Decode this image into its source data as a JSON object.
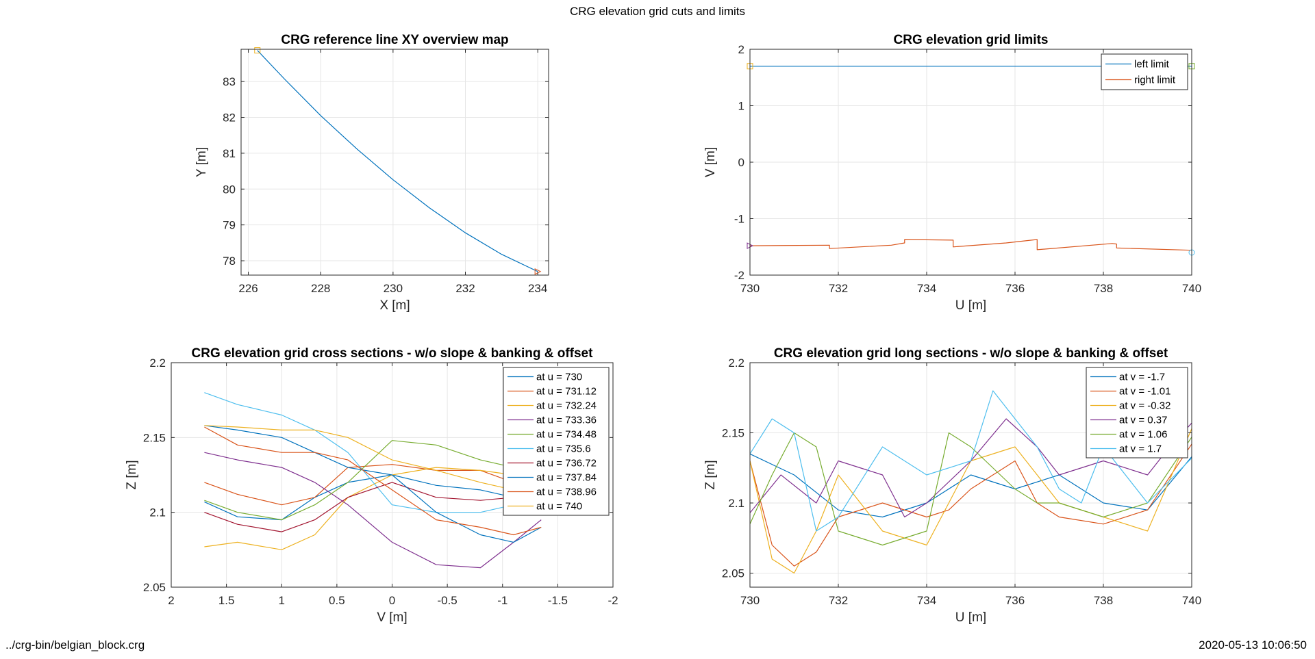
{
  "figure": {
    "suptitle": "CRG elevation grid cuts and limits",
    "footer_left": "../crg-bin/belgian_block.crg",
    "footer_right": "2020-05-13 10:06:50"
  },
  "chart_data": [
    {
      "id": "ax1",
      "type": "line",
      "title": "CRG reference line XY overview map",
      "xlabel": "X [m]",
      "ylabel": "Y [m]",
      "xlim": [
        225.8,
        234.3
      ],
      "ylim": [
        77.6,
        83.9
      ],
      "xticks": [
        226,
        228,
        230,
        232,
        234
      ],
      "yticks": [
        78,
        79,
        80,
        81,
        82,
        83
      ],
      "grid": true,
      "series": [
        {
          "x": [
            226.25,
            227.0,
            228.0,
            229.0,
            230.0,
            231.0,
            232.0,
            233.0,
            234.0
          ],
          "y": [
            83.87,
            83.07,
            82.05,
            81.12,
            80.26,
            79.48,
            78.78,
            78.18,
            77.7
          ],
          "color": "#0072BD"
        }
      ],
      "markers": [
        {
          "x": 226.25,
          "y": 83.87,
          "shape": "square",
          "color": "#EDB120"
        },
        {
          "x": 234.0,
          "y": 77.7,
          "shape": "triangle-right",
          "color": "#D95319"
        }
      ]
    },
    {
      "id": "ax2",
      "type": "line",
      "title": "CRG elevation grid limits",
      "xlabel": "U [m]",
      "ylabel": "V [m]",
      "xlim": [
        730,
        740
      ],
      "ylim": [
        -2,
        2
      ],
      "xticks": [
        730,
        732,
        734,
        736,
        738,
        740
      ],
      "yticks": [
        -2,
        -1,
        0,
        1,
        2
      ],
      "grid": true,
      "legend": "top-right",
      "series": [
        {
          "name": "left limit",
          "color": "#0072BD",
          "x": [
            730,
            740
          ],
          "y": [
            1.7,
            1.7
          ]
        },
        {
          "name": "right limit",
          "color": "#D95319",
          "x": [
            730,
            731.8,
            731.8,
            733.2,
            733.5,
            733.5,
            734.6,
            734.6,
            735.8,
            736.5,
            736.5,
            738.2,
            738.3,
            738.3,
            740
          ],
          "y": [
            -1.48,
            -1.47,
            -1.53,
            -1.47,
            -1.43,
            -1.37,
            -1.38,
            -1.5,
            -1.43,
            -1.37,
            -1.55,
            -1.44,
            -1.45,
            -1.52,
            -1.56
          ]
        }
      ],
      "markers": [
        {
          "x": 730,
          "y": 1.7,
          "shape": "square",
          "color": "#EDB120"
        },
        {
          "x": 740,
          "y": 1.7,
          "shape": "square",
          "color": "#77AC30"
        },
        {
          "x": 730,
          "y": -1.48,
          "shape": "triangle-right",
          "color": "#7E2F8E"
        },
        {
          "x": 740,
          "y": -1.6,
          "shape": "circle",
          "color": "#4DBEEE"
        }
      ]
    },
    {
      "id": "ax3",
      "type": "line",
      "title": "CRG elevation grid cross sections - w/o slope & banking & offset",
      "xlabel": "V [m]",
      "ylabel": "Z [m]",
      "xlim": [
        2,
        -2
      ],
      "ylim": [
        2.05,
        2.2
      ],
      "xticks": [
        2,
        1.5,
        1,
        0.5,
        0,
        -0.5,
        -1,
        -1.5,
        -2
      ],
      "yticks": [
        2.05,
        2.1,
        2.15,
        2.2
      ],
      "grid": true,
      "legend": "top-right",
      "series": [
        {
          "name": "at u = 730",
          "color": "#0072BD",
          "x": [
            1.7,
            1.4,
            1.0,
            0.7,
            0.4,
            0.0,
            -0.4,
            -0.8,
            -1.1,
            -1.35
          ],
          "y": [
            2.107,
            2.097,
            2.095,
            2.11,
            2.12,
            2.125,
            2.118,
            2.115,
            2.11,
            2.107
          ]
        },
        {
          "name": "at u = 731.12",
          "color": "#D95319",
          "x": [
            1.7,
            1.4,
            1.0,
            0.7,
            0.4,
            0.0,
            -0.4,
            -0.8,
            -1.1,
            -1.35
          ],
          "y": [
            2.12,
            2.112,
            2.105,
            2.11,
            2.13,
            2.132,
            2.128,
            2.128,
            2.12,
            2.12
          ]
        },
        {
          "name": "at u = 732.24",
          "color": "#EDB120",
          "x": [
            1.7,
            1.4,
            1.0,
            0.7,
            0.4,
            0.0,
            -0.4,
            -0.8,
            -1.1,
            -1.35
          ],
          "y": [
            2.077,
            2.08,
            2.075,
            2.085,
            2.11,
            2.125,
            2.13,
            2.128,
            2.125,
            2.12
          ]
        },
        {
          "name": "at u = 733.36",
          "color": "#7E2F8E",
          "x": [
            1.7,
            1.4,
            1.0,
            0.7,
            0.4,
            0.0,
            -0.4,
            -0.8,
            -1.1,
            -1.35
          ],
          "y": [
            2.14,
            2.135,
            2.13,
            2.12,
            2.105,
            2.08,
            2.065,
            2.063,
            2.08,
            2.095
          ]
        },
        {
          "name": "at u = 734.48",
          "color": "#77AC30",
          "x": [
            1.7,
            1.4,
            1.0,
            0.7,
            0.4,
            0.0,
            -0.4,
            -0.8,
            -1.1,
            -1.35
          ],
          "y": [
            2.108,
            2.1,
            2.095,
            2.105,
            2.12,
            2.148,
            2.145,
            2.135,
            2.13,
            2.128
          ]
        },
        {
          "name": "at u = 735.6",
          "color": "#4DBEEE",
          "x": [
            1.7,
            1.4,
            1.0,
            0.7,
            0.4,
            0.0,
            -0.4,
            -0.8,
            -1.1,
            -1.35
          ],
          "y": [
            2.18,
            2.172,
            2.165,
            2.155,
            2.14,
            2.105,
            2.1,
            2.1,
            2.105,
            2.11
          ]
        },
        {
          "name": "at u = 736.72",
          "color": "#A2142F",
          "x": [
            1.7,
            1.4,
            1.0,
            0.7,
            0.4,
            0.0,
            -0.4,
            -0.8,
            -1.1,
            -1.35
          ],
          "y": [
            2.1,
            2.092,
            2.087,
            2.095,
            2.11,
            2.12,
            2.11,
            2.108,
            2.11,
            2.105
          ]
        },
        {
          "name": "at u = 737.84",
          "color": "#0072BD",
          "x": [
            1.7,
            1.4,
            1.0,
            0.7,
            0.4,
            0.0,
            -0.4,
            -0.8,
            -1.1,
            -1.35
          ],
          "y": [
            2.158,
            2.155,
            2.15,
            2.14,
            2.13,
            2.125,
            2.1,
            2.085,
            2.08,
            2.09
          ]
        },
        {
          "name": "at u = 738.96",
          "color": "#D95319",
          "x": [
            1.7,
            1.4,
            1.0,
            0.7,
            0.4,
            0.0,
            -0.4,
            -0.8,
            -1.1,
            -1.35
          ],
          "y": [
            2.157,
            2.145,
            2.14,
            2.14,
            2.135,
            2.115,
            2.095,
            2.09,
            2.085,
            2.09
          ]
        },
        {
          "name": "at u = 740",
          "color": "#EDB120",
          "x": [
            1.7,
            1.4,
            1.0,
            0.7,
            0.4,
            0.0,
            -0.4,
            -0.8,
            -1.1,
            -1.35
          ],
          "y": [
            2.158,
            2.157,
            2.155,
            2.155,
            2.15,
            2.135,
            2.128,
            2.12,
            2.115,
            2.12
          ]
        }
      ]
    },
    {
      "id": "ax4",
      "type": "line",
      "title": "CRG elevation grid long sections - w/o slope & banking & offset",
      "xlabel": "U [m]",
      "ylabel": "Z [m]",
      "xlim": [
        730,
        740
      ],
      "ylim": [
        2.04,
        2.2
      ],
      "xticks": [
        730,
        732,
        734,
        736,
        738,
        740
      ],
      "yticks": [
        2.05,
        2.1,
        2.15,
        2.2
      ],
      "grid": true,
      "legend": "top-right",
      "series": [
        {
          "name": "at v = -1.7",
          "color": "#0072BD",
          "x": [
            730,
            731,
            732,
            733,
            734,
            735,
            736,
            737,
            738,
            739,
            740
          ],
          "y": [
            2.135,
            2.12,
            2.095,
            2.09,
            2.1,
            2.12,
            2.11,
            2.12,
            2.1,
            2.095,
            2.133
          ]
        },
        {
          "name": "at v = -1.01",
          "color": "#D95319",
          "x": [
            730,
            730.5,
            731,
            731.5,
            732,
            733,
            734,
            734.5,
            735,
            735.5,
            736,
            736.5,
            737,
            738,
            739,
            740
          ],
          "y": [
            2.13,
            2.07,
            2.055,
            2.065,
            2.09,
            2.1,
            2.09,
            2.095,
            2.11,
            2.12,
            2.13,
            2.1,
            2.09,
            2.085,
            2.095,
            2.142
          ]
        },
        {
          "name": "at v = -0.32",
          "color": "#EDB120",
          "x": [
            730,
            730.5,
            731,
            731.5,
            732,
            733,
            734,
            734.5,
            735,
            736,
            736.5,
            737,
            738,
            739,
            740
          ],
          "y": [
            2.13,
            2.06,
            2.05,
            2.08,
            2.12,
            2.08,
            2.07,
            2.1,
            2.13,
            2.14,
            2.12,
            2.1,
            2.09,
            2.08,
            2.153
          ]
        },
        {
          "name": "at v = 0.37",
          "color": "#7E2F8E",
          "x": [
            730,
            730.7,
            731.5,
            732,
            733,
            733.5,
            734,
            735,
            735.8,
            736.5,
            737,
            738,
            739,
            739.5,
            740
          ],
          "y": [
            2.093,
            2.12,
            2.1,
            2.13,
            2.12,
            2.09,
            2.1,
            2.13,
            2.16,
            2.14,
            2.12,
            2.13,
            2.12,
            2.14,
            2.157
          ]
        },
        {
          "name": "at v = 1.06",
          "color": "#77AC30",
          "x": [
            730,
            730.5,
            731,
            731.5,
            732,
            733,
            734,
            734.5,
            735,
            736,
            736.5,
            737,
            738,
            739,
            740
          ],
          "y": [
            2.085,
            2.12,
            2.15,
            2.14,
            2.08,
            2.07,
            2.08,
            2.15,
            2.14,
            2.11,
            2.1,
            2.1,
            2.09,
            2.1,
            2.147
          ]
        },
        {
          "name": "at v = 1.7",
          "color": "#4DBEEE",
          "x": [
            730,
            730.5,
            731,
            731.5,
            732,
            733,
            734,
            735,
            735.5,
            736,
            736.5,
            737,
            737.5,
            738,
            739,
            740
          ],
          "y": [
            2.135,
            2.16,
            2.15,
            2.08,
            2.09,
            2.14,
            2.12,
            2.13,
            2.18,
            2.16,
            2.14,
            2.11,
            2.1,
            2.14,
            2.1,
            2.132
          ]
        }
      ]
    }
  ]
}
